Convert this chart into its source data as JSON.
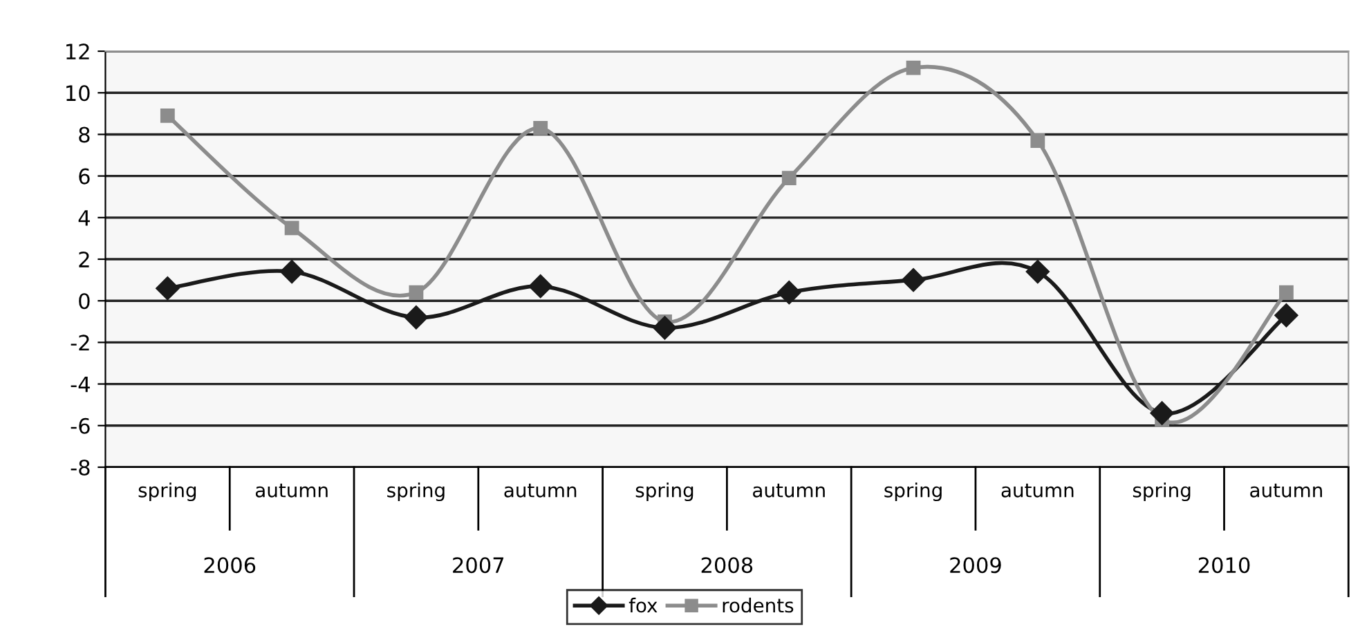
{
  "chart_data": {
    "type": "line",
    "categories": [
      "spring",
      "autumn",
      "spring",
      "autumn",
      "spring",
      "autumn",
      "spring",
      "autumn",
      "spring",
      "autumn"
    ],
    "annotations": [
      "2006",
      "2007",
      "2008",
      "2009",
      "2010"
    ],
    "series": [
      {
        "name": "fox",
        "color": "#1a1a1a",
        "marker": "diamond",
        "values": [
          0.6,
          1.4,
          -0.8,
          0.7,
          -1.3,
          0.4,
          1.0,
          1.4,
          -5.4,
          -0.7
        ]
      },
      {
        "name": "rodents",
        "color": "#8c8c8c",
        "marker": "square",
        "values": [
          8.9,
          3.5,
          0.4,
          8.3,
          -1.0,
          5.9,
          11.2,
          7.7,
          -5.7,
          0.4
        ]
      }
    ],
    "ylim": [
      -8,
      12
    ],
    "yticks": [
      -8,
      -6,
      -4,
      -2,
      0,
      2,
      4,
      6,
      8,
      10,
      12
    ],
    "grid": "y",
    "legend": "bottom",
    "line_style": "solid"
  }
}
